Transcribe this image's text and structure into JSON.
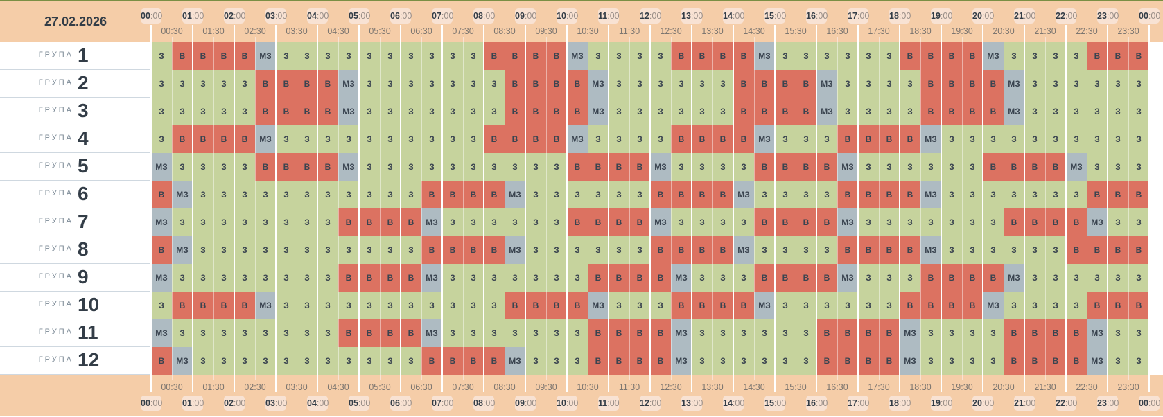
{
  "date": "27.02.2026",
  "group_word": "ГРУПА",
  "hour_labels": [
    "00",
    "01",
    "02",
    "03",
    "04",
    "05",
    "06",
    "07",
    "08",
    "09",
    "10",
    "11",
    "12",
    "13",
    "14",
    "15",
    "16",
    "17",
    "18",
    "19",
    "20",
    "21",
    "22",
    "23",
    "00"
  ],
  "minute_suffix": ":00",
  "half_labels": [
    "00:30",
    "01:30",
    "02:30",
    "03:30",
    "04:30",
    "05:30",
    "06:30",
    "07:30",
    "08:30",
    "09:30",
    "10:30",
    "11:30",
    "12:30",
    "13:30",
    "14:30",
    "15:30",
    "16:30",
    "17:30",
    "18:30",
    "19:30",
    "20:30",
    "21:30",
    "22:30",
    "23:30"
  ],
  "status_colors": {
    "З": "#c6d39d",
    "В": "#dc7261",
    "МЗ": "#aebbc2"
  },
  "groups": [
    {
      "number": "1",
      "cells": [
        "З",
        "В",
        "В",
        "В",
        "В",
        "МЗ",
        "З",
        "З",
        "З",
        "З",
        "З",
        "З",
        "З",
        "З",
        "З",
        "З",
        "В",
        "В",
        "В",
        "В",
        "МЗ",
        "З",
        "З",
        "З",
        "З",
        "В",
        "В",
        "В",
        "В",
        "МЗ",
        "З",
        "З",
        "З",
        "З",
        "З",
        "З",
        "В",
        "В",
        "В",
        "В",
        "МЗ",
        "З",
        "З",
        "З",
        "З",
        "В",
        "В",
        "В"
      ]
    },
    {
      "number": "2",
      "cells": [
        "З",
        "З",
        "З",
        "З",
        "З",
        "В",
        "В",
        "В",
        "В",
        "МЗ",
        "З",
        "З",
        "З",
        "З",
        "З",
        "З",
        "З",
        "В",
        "В",
        "В",
        "В",
        "МЗ",
        "З",
        "З",
        "З",
        "З",
        "З",
        "З",
        "В",
        "В",
        "В",
        "В",
        "МЗ",
        "З",
        "З",
        "З",
        "З",
        "В",
        "В",
        "В",
        "В",
        "МЗ",
        "З",
        "З",
        "З",
        "З",
        "З",
        "З"
      ]
    },
    {
      "number": "3",
      "cells": [
        "З",
        "З",
        "З",
        "З",
        "З",
        "В",
        "В",
        "В",
        "В",
        "МЗ",
        "З",
        "З",
        "З",
        "З",
        "З",
        "З",
        "З",
        "В",
        "В",
        "В",
        "В",
        "МЗ",
        "З",
        "З",
        "З",
        "З",
        "З",
        "З",
        "В",
        "В",
        "В",
        "В",
        "МЗ",
        "З",
        "З",
        "З",
        "З",
        "В",
        "В",
        "В",
        "В",
        "МЗ",
        "З",
        "З",
        "З",
        "З",
        "З",
        "З"
      ]
    },
    {
      "number": "4",
      "cells": [
        "З",
        "В",
        "В",
        "В",
        "В",
        "МЗ",
        "З",
        "З",
        "З",
        "З",
        "З",
        "З",
        "З",
        "З",
        "З",
        "З",
        "В",
        "В",
        "В",
        "В",
        "МЗ",
        "З",
        "З",
        "З",
        "З",
        "В",
        "В",
        "В",
        "В",
        "МЗ",
        "З",
        "З",
        "З",
        "В",
        "В",
        "В",
        "В",
        "МЗ",
        "З",
        "З",
        "З",
        "З",
        "З",
        "З",
        "З",
        "З",
        "З",
        "З"
      ]
    },
    {
      "number": "5",
      "cells": [
        "МЗ",
        "З",
        "З",
        "З",
        "З",
        "В",
        "В",
        "В",
        "В",
        "МЗ",
        "З",
        "З",
        "З",
        "З",
        "З",
        "З",
        "З",
        "З",
        "З",
        "З",
        "В",
        "В",
        "В",
        "В",
        "МЗ",
        "З",
        "З",
        "З",
        "З",
        "В",
        "В",
        "В",
        "В",
        "МЗ",
        "З",
        "З",
        "З",
        "З",
        "З",
        "З",
        "В",
        "В",
        "В",
        "В",
        "МЗ",
        "З",
        "З",
        "З"
      ]
    },
    {
      "number": "6",
      "cells": [
        "В",
        "МЗ",
        "З",
        "З",
        "З",
        "З",
        "З",
        "З",
        "З",
        "З",
        "З",
        "З",
        "З",
        "В",
        "В",
        "В",
        "В",
        "МЗ",
        "З",
        "З",
        "З",
        "З",
        "З",
        "З",
        "В",
        "В",
        "В",
        "В",
        "МЗ",
        "З",
        "З",
        "З",
        "З",
        "В",
        "В",
        "В",
        "В",
        "МЗ",
        "З",
        "З",
        "З",
        "З",
        "З",
        "З",
        "З",
        "В",
        "В",
        "В"
      ]
    },
    {
      "number": "7",
      "cells": [
        "МЗ",
        "З",
        "З",
        "З",
        "З",
        "З",
        "З",
        "З",
        "З",
        "В",
        "В",
        "В",
        "В",
        "МЗ",
        "З",
        "З",
        "З",
        "З",
        "З",
        "З",
        "В",
        "В",
        "В",
        "В",
        "МЗ",
        "З",
        "З",
        "З",
        "З",
        "В",
        "В",
        "В",
        "В",
        "МЗ",
        "З",
        "З",
        "З",
        "З",
        "З",
        "З",
        "З",
        "В",
        "В",
        "В",
        "В",
        "МЗ",
        "З",
        "З"
      ]
    },
    {
      "number": "8",
      "cells": [
        "В",
        "МЗ",
        "З",
        "З",
        "З",
        "З",
        "З",
        "З",
        "З",
        "З",
        "З",
        "З",
        "З",
        "В",
        "В",
        "В",
        "В",
        "МЗ",
        "З",
        "З",
        "З",
        "З",
        "З",
        "З",
        "В",
        "В",
        "В",
        "В",
        "МЗ",
        "З",
        "З",
        "З",
        "З",
        "В",
        "В",
        "В",
        "В",
        "МЗ",
        "З",
        "З",
        "З",
        "З",
        "З",
        "З",
        "В",
        "В",
        "В",
        "В"
      ]
    },
    {
      "number": "9",
      "cells": [
        "МЗ",
        "З",
        "З",
        "З",
        "З",
        "З",
        "З",
        "З",
        "З",
        "В",
        "В",
        "В",
        "В",
        "МЗ",
        "З",
        "З",
        "З",
        "З",
        "З",
        "З",
        "З",
        "В",
        "В",
        "В",
        "В",
        "МЗ",
        "З",
        "З",
        "З",
        "В",
        "В",
        "В",
        "В",
        "МЗ",
        "З",
        "З",
        "З",
        "В",
        "В",
        "В",
        "В",
        "МЗ",
        "З",
        "З",
        "З",
        "З",
        "З",
        "З"
      ]
    },
    {
      "number": "10",
      "cells": [
        "З",
        "В",
        "В",
        "В",
        "В",
        "МЗ",
        "З",
        "З",
        "З",
        "З",
        "З",
        "З",
        "З",
        "З",
        "З",
        "З",
        "З",
        "В",
        "В",
        "В",
        "В",
        "МЗ",
        "З",
        "З",
        "З",
        "В",
        "В",
        "В",
        "В",
        "МЗ",
        "З",
        "З",
        "З",
        "З",
        "З",
        "З",
        "В",
        "В",
        "В",
        "В",
        "МЗ",
        "З",
        "З",
        "З",
        "З",
        "В",
        "В",
        "В"
      ]
    },
    {
      "number": "11",
      "cells": [
        "МЗ",
        "З",
        "З",
        "З",
        "З",
        "З",
        "З",
        "З",
        "З",
        "В",
        "В",
        "В",
        "В",
        "МЗ",
        "З",
        "З",
        "З",
        "З",
        "З",
        "З",
        "З",
        "В",
        "В",
        "В",
        "В",
        "МЗ",
        "З",
        "З",
        "З",
        "З",
        "З",
        "З",
        "В",
        "В",
        "В",
        "В",
        "МЗ",
        "З",
        "З",
        "З",
        "З",
        "В",
        "В",
        "В",
        "В",
        "МЗ",
        "З",
        "З"
      ]
    },
    {
      "number": "12",
      "cells": [
        "В",
        "МЗ",
        "З",
        "З",
        "З",
        "З",
        "З",
        "З",
        "З",
        "З",
        "З",
        "З",
        "З",
        "В",
        "В",
        "В",
        "В",
        "МЗ",
        "З",
        "З",
        "З",
        "В",
        "В",
        "В",
        "В",
        "МЗ",
        "З",
        "З",
        "З",
        "З",
        "З",
        "З",
        "В",
        "В",
        "В",
        "В",
        "МЗ",
        "З",
        "З",
        "З",
        "З",
        "В",
        "В",
        "В",
        "В",
        "МЗ",
        "З",
        "З"
      ]
    }
  ]
}
